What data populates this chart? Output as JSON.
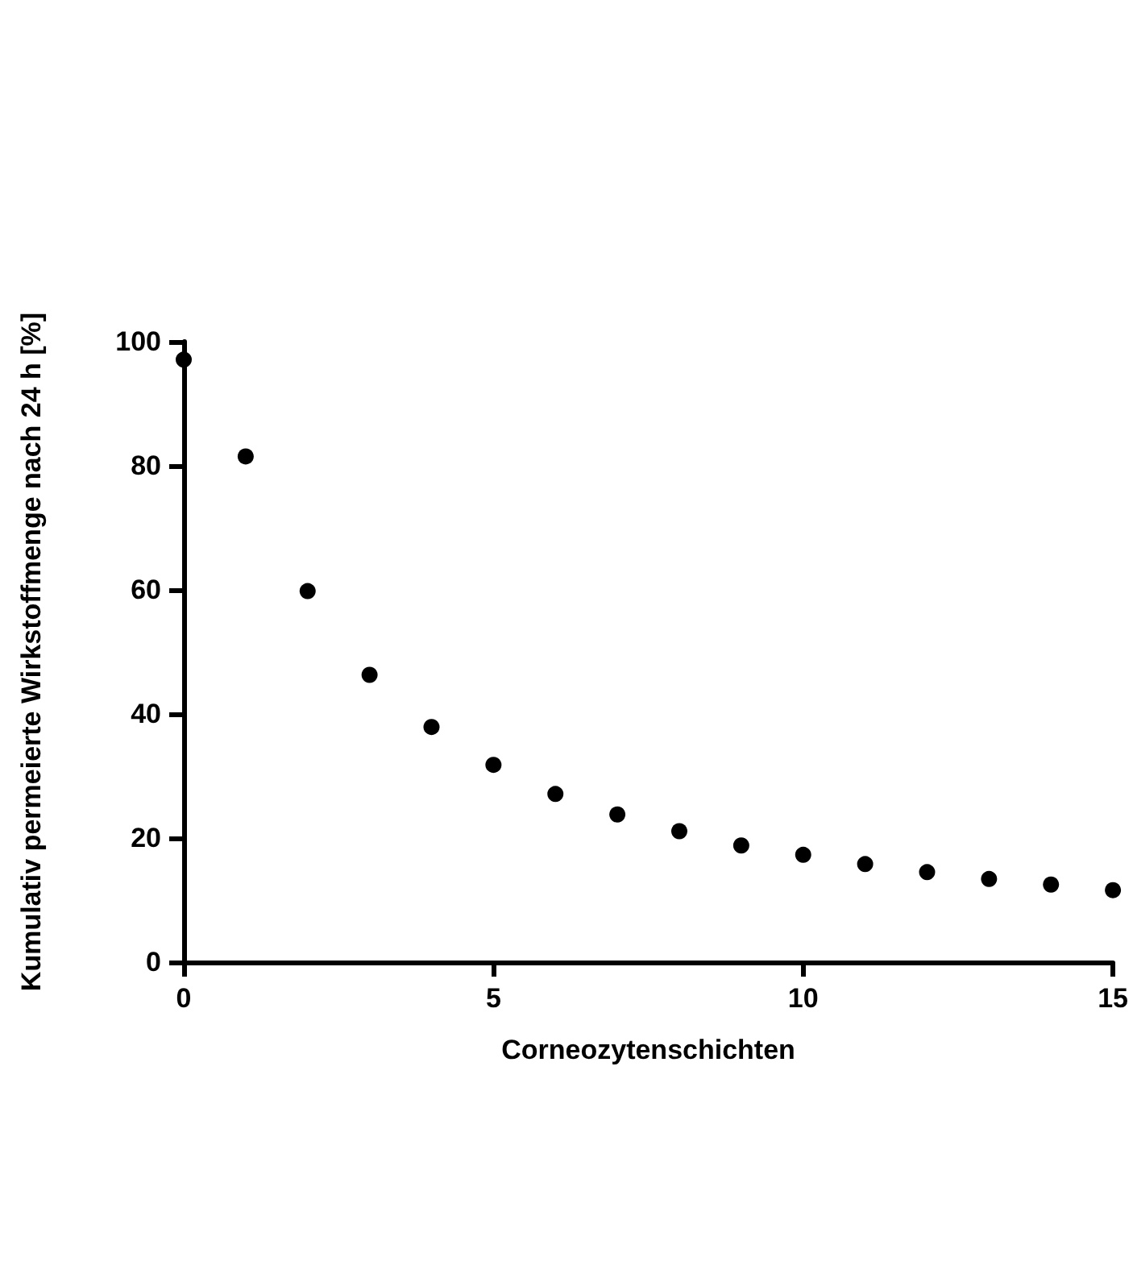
{
  "chart_data": {
    "type": "scatter",
    "xlabel": "Corneozytenschichten",
    "ylabel": "Kumulativ permeierte Wirkstoffmenge nach 24 h [%]",
    "x": [
      0,
      1,
      2,
      3,
      4,
      5,
      6,
      7,
      8,
      9,
      10,
      11,
      12,
      13,
      14,
      15
    ],
    "series": [
      {
        "color": "#000000",
        "values": [
          97.1,
          81.5,
          59.8,
          46.3,
          37.9,
          31.8,
          27.1,
          23.8,
          21.1,
          18.8,
          17.3,
          15.8,
          14.5,
          13.4,
          12.5,
          11.6
        ]
      }
    ],
    "xlim": [
      0,
      15
    ],
    "xticks": [
      0,
      5,
      10,
      15
    ],
    "ylim": [
      0,
      100
    ],
    "yticks": [
      0,
      20,
      40,
      60,
      80,
      100
    ],
    "marker": "circle"
  }
}
